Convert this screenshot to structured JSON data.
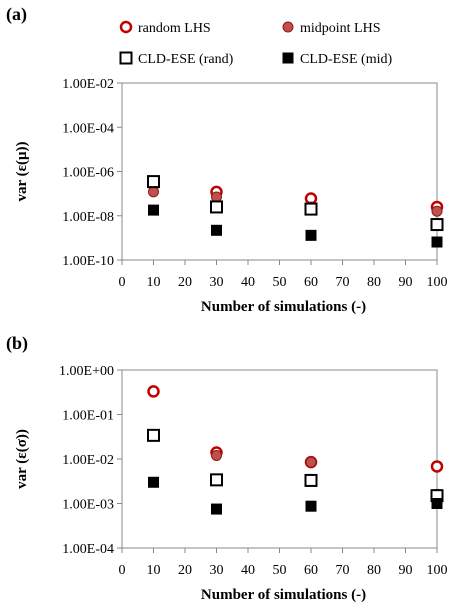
{
  "legend": [
    {
      "name": "random LHS",
      "marker": "circle-open",
      "color": "#c00000"
    },
    {
      "name": "midpoint LHS",
      "marker": "circle-filled",
      "color": "#c0504d"
    },
    {
      "name": "CLD-ESE (rand)",
      "marker": "square-open",
      "color": "#000000"
    },
    {
      "name": "CLD-ESE (mid)",
      "marker": "square-filled",
      "color": "#000000"
    }
  ],
  "chart_data": [
    {
      "panel": "(a)",
      "type": "scatter",
      "xlabel": "Number of simulations (-)",
      "ylabel": "var (ε(μ))",
      "xlim": [
        0,
        100
      ],
      "xticks": [
        0,
        10,
        20,
        30,
        40,
        50,
        60,
        70,
        80,
        90,
        100
      ],
      "y_scale": "log",
      "ylim": [
        1e-10,
        0.01
      ],
      "yticks": [
        1e-10,
        1e-08,
        1e-06,
        0.0001,
        0.01
      ],
      "ytick_labels": [
        "1.00E-10",
        "1.00E-08",
        "1.00E-06",
        "1.00E-04",
        "1.00E-02"
      ],
      "grid": false,
      "x": [
        10,
        30,
        60,
        100
      ],
      "series": [
        {
          "name": "random LHS",
          "values": [
            2.6e-07,
            1.2e-07,
            6e-08,
            2.5e-08
          ]
        },
        {
          "name": "midpoint LHS",
          "values": [
            1.2e-07,
            7e-08,
            2.5e-08,
            1.6e-08
          ]
        },
        {
          "name": "CLD-ESE (rand)",
          "values": [
            3.5e-07,
            2.5e-08,
            2e-08,
            4e-09
          ]
        },
        {
          "name": "CLD-ESE (mid)",
          "values": [
            1.8e-08,
            2.2e-09,
            1.3e-09,
            6.5e-10
          ]
        }
      ]
    },
    {
      "panel": "(b)",
      "type": "scatter",
      "xlabel": "Number of simulations (-)",
      "ylabel": "var (ε(σ))",
      "xlim": [
        0,
        100
      ],
      "xticks": [
        0,
        10,
        20,
        30,
        40,
        50,
        60,
        70,
        80,
        90,
        100
      ],
      "y_scale": "log",
      "ylim": [
        0.0001,
        1
      ],
      "yticks": [
        0.0001,
        0.001,
        0.01,
        0.1,
        1
      ],
      "ytick_labels": [
        "1.00E-04",
        "1.00E-03",
        "1.00E-02",
        "1.00E-01",
        "1.00E+00"
      ],
      "grid": false,
      "x": [
        10,
        30,
        60,
        100
      ],
      "series": [
        {
          "name": "random LHS",
          "values": [
            0.33,
            0.014,
            0.0085,
            0.0068
          ]
        },
        {
          "name": "midpoint LHS",
          "values": [
            0.034,
            0.012,
            0.0085,
            0.0016
          ]
        },
        {
          "name": "CLD-ESE (rand)",
          "values": [
            0.034,
            0.0034,
            0.0033,
            0.0015
          ]
        },
        {
          "name": "CLD-ESE (mid)",
          "values": [
            0.003,
            0.00075,
            0.00087,
            0.001
          ]
        }
      ]
    }
  ]
}
